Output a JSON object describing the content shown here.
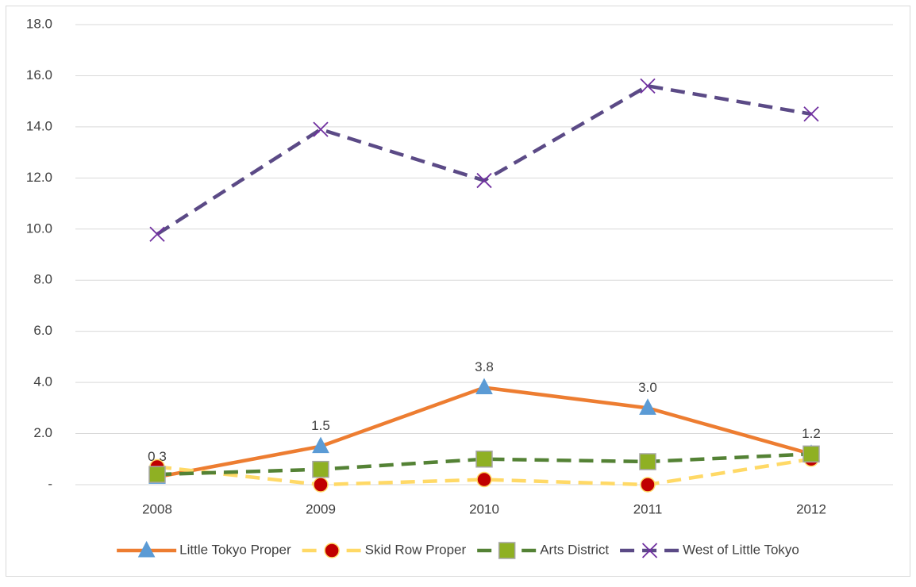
{
  "chart_data": {
    "type": "line",
    "categories": [
      "2008",
      "2009",
      "2010",
      "2011",
      "2012"
    ],
    "ylim": [
      0,
      18
    ],
    "yticks": [
      {
        "value": 0,
        "label": "-"
      },
      {
        "value": 2,
        "label": "2.0"
      },
      {
        "value": 4,
        "label": "4.0"
      },
      {
        "value": 6,
        "label": "6.0"
      },
      {
        "value": 8,
        "label": "8.0"
      },
      {
        "value": 10,
        "label": "10.0"
      },
      {
        "value": 12,
        "label": "12.0"
      },
      {
        "value": 14,
        "label": "14.0"
      },
      {
        "value": 16,
        "label": "16.0"
      },
      {
        "value": 18,
        "label": "18.0"
      }
    ],
    "grid": true,
    "legend": "bottom",
    "series": [
      {
        "name": "Little Tokyo Proper",
        "color": "#ED7D31",
        "dash": "solid",
        "marker": "triangle",
        "marker_color": "#5B9BD5",
        "values": [
          0.3,
          1.5,
          3.8,
          3.0,
          1.2
        ],
        "value_labels": [
          "0.3",
          "1.5",
          "3.8",
          "3.0",
          "1.2"
        ]
      },
      {
        "name": "Skid Row Proper",
        "color": "#FFD966",
        "dash": "dashed",
        "marker": "circle",
        "marker_color": "#C00000",
        "values": [
          0.7,
          0.0,
          0.2,
          0.0,
          1.0
        ]
      },
      {
        "name": "Arts District",
        "color": "#548235",
        "dash": "dashed",
        "marker": "square",
        "marker_color": "#8FB023",
        "values": [
          0.4,
          0.6,
          1.0,
          0.9,
          1.2
        ]
      },
      {
        "name": "West of Little Tokyo",
        "color": "#5B4A86",
        "dash": "dashed",
        "marker": "x",
        "marker_color": "#7030A0",
        "values": [
          9.8,
          13.9,
          11.9,
          15.6,
          14.5
        ]
      }
    ]
  }
}
